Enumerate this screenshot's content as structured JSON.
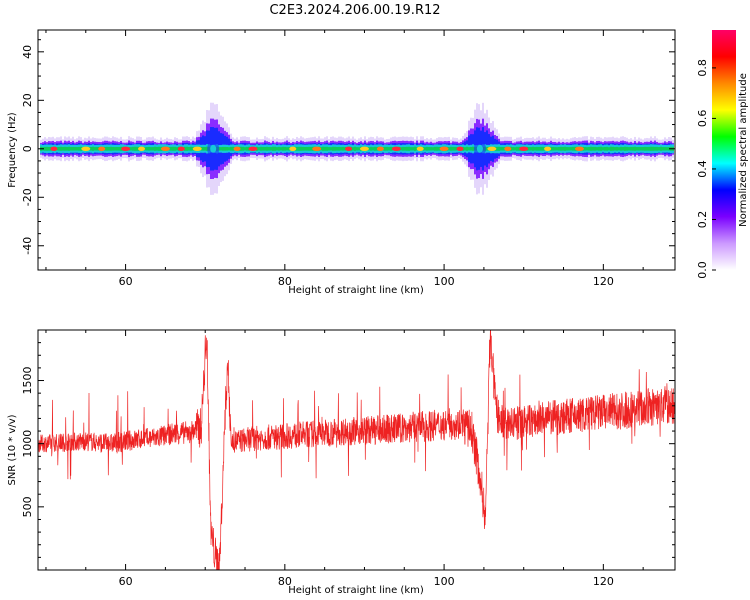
{
  "title": "C2E3.2024.206.00.19.R12",
  "colors": {
    "snr_line": "#ee2222",
    "spectrum_core": "#11cc55",
    "frame": "#000000"
  },
  "chart_data": [
    {
      "type": "heatmap",
      "xlabel": "Height of straight line (km)",
      "ylabel": "Frequency (Hz)",
      "xlim": [
        49,
        129
      ],
      "ylim": [
        -50,
        49
      ],
      "xticks": [
        "60",
        "80",
        "100",
        "120"
      ],
      "yticks": [
        "40",
        "20",
        "0",
        "-20",
        "-40"
      ],
      "band_description_hz": {
        "center": 0,
        "typical_half_width": 3
      },
      "colorbar": {
        "label": "Normalized spectral amplitude",
        "range": [
          0.0,
          0.95
        ],
        "ticks": [
          "0.0",
          "0.2",
          "0.4",
          "0.6",
          "0.8"
        ],
        "colormap": [
          "#ffffff",
          "#cc99ff",
          "#7a00ff",
          "#0000ff",
          "#00ffff",
          "#00ff00",
          "#ffff00",
          "#ff8800",
          "#ff0000",
          "#ff0066"
        ]
      },
      "disturbances_km": [
        71,
        104.5
      ],
      "hot_spots_km": [
        51,
        55,
        57,
        60,
        62,
        65,
        67,
        69,
        74,
        76,
        81,
        84,
        88,
        90,
        92,
        94,
        97,
        100,
        102,
        106,
        108,
        110,
        113,
        117
      ]
    },
    {
      "type": "line",
      "xlabel": "Height of straight line (km)",
      "ylabel": "SNR (10 * v/v)",
      "xlim": [
        49,
        129
      ],
      "ylim": [
        0,
        1900
      ],
      "xticks": [
        "60",
        "80",
        "100",
        "120"
      ],
      "yticks": [
        "1500",
        "1000",
        "500"
      ],
      "series": [
        {
          "x": [
            49,
            52,
            55,
            58,
            61,
            64,
            66,
            68,
            69.5,
            70.2,
            70.7,
            71.3,
            71.8,
            72.3,
            72.8,
            73.3,
            74,
            76,
            80,
            84,
            88,
            92,
            96,
            100,
            102,
            103.5,
            104.5,
            105.2,
            105.8,
            106.5,
            107.5,
            110,
            113,
            116,
            119,
            122,
            125,
            128,
            129
          ],
          "values": [
            1000,
            1010,
            1020,
            1000,
            1030,
            1050,
            1080,
            1090,
            1130,
            1900,
            300,
            100,
            20,
            900,
            1650,
            1000,
            1020,
            1040,
            1060,
            1080,
            1100,
            1110,
            1130,
            1150,
            1160,
            1100,
            750,
            400,
            1900,
            1250,
            1150,
            1170,
            1200,
            1220,
            1240,
            1260,
            1280,
            1300,
            1290
          ]
        }
      ]
    }
  ]
}
